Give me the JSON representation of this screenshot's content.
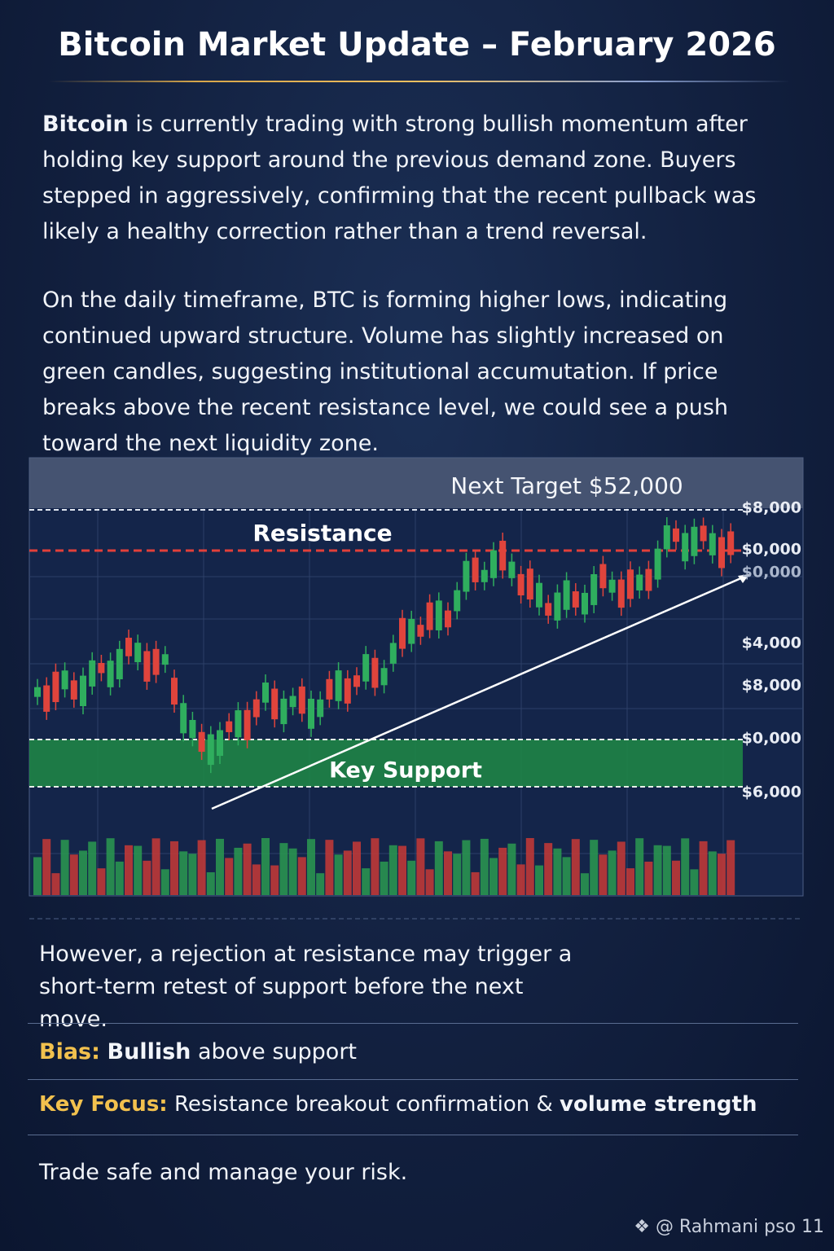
{
  "header": {
    "title": "Bitcoin Market Update – February 2026"
  },
  "intro": {
    "lead": "Bitcoin",
    "text": " is currently trading with strong bullish momentum after holding key support around the previous demand zone. Buyers stepped in aggressively, confirming that the recent pullback was likely a healthy correction rather than a trend reversal."
  },
  "paragraph2": "On the daily timeframe, BTC is forming higher lows, indicating continued upward structure. Volume has slightly increased on green candles, suggesting institutional accumutation. If price breaks above the recent resistance level, we could see a push toward the next liquidity zone.",
  "chart": {
    "target_label": "Next Target $52,000",
    "resistance_label": "Resistance",
    "support_label": "Key Support",
    "price_labels": [
      "$8,000",
      "$0,000",
      "$0,000",
      "$4,000",
      "$8,000",
      "$0,000",
      "$6,000"
    ]
  },
  "paragraph3": "However, a rejection at resistance may trigger a short-term retest of support before the next move.",
  "bias": {
    "label": "Bias:",
    "bold": "Bullish",
    "text": " above support"
  },
  "focus": {
    "label": "Key Focus:",
    "text": " Resistance breakout confirmation & ",
    "bold": "volume strength"
  },
  "closing": "Trade safe and manage your risk.",
  "footer": "@ Rahmani pso 11"
}
